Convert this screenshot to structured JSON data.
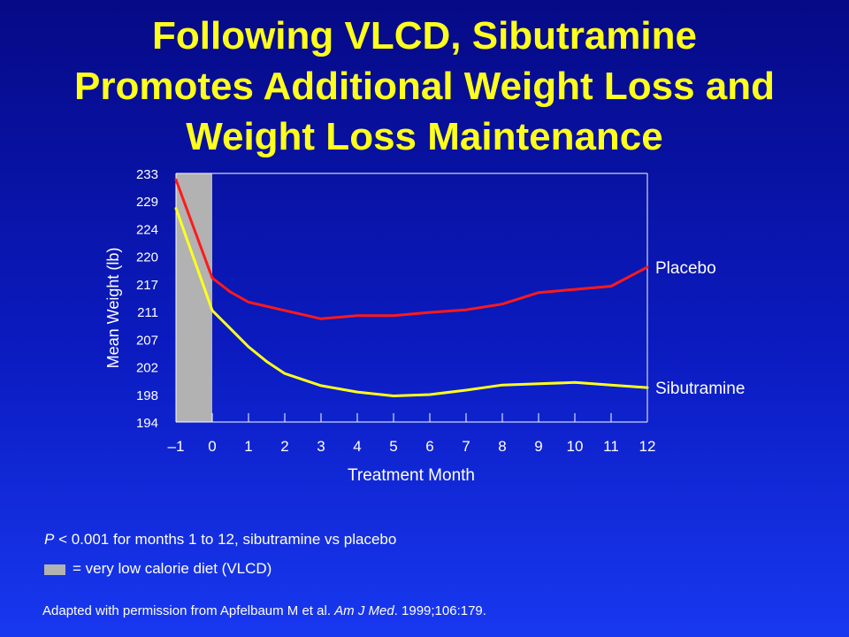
{
  "title_lines": [
    "Following VLCD, Sibutramine",
    "Promotes Additional Weight Loss and",
    "Weight Loss Maintenance"
  ],
  "chart_data": {
    "type": "line",
    "xlabel": "Treatment Month",
    "ylabel": "Mean Weight (lb)",
    "x_ticks": [
      "–1",
      "0",
      "1",
      "2",
      "3",
      "4",
      "5",
      "6",
      "7",
      "8",
      "9",
      "10",
      "11",
      "12"
    ],
    "y_ticks": [
      "194",
      "198",
      "202",
      "207",
      "211",
      "217",
      "220",
      "224",
      "229",
      "233"
    ],
    "xlim": [
      -1,
      12
    ],
    "ylim": [
      194,
      233
    ],
    "shaded_region": {
      "from": -1,
      "to": 0,
      "color": "#b2b2b2",
      "meaning": "VLCD"
    },
    "series": [
      {
        "name": "Placebo",
        "color": "#ff1a1a",
        "x": [
          -1,
          0,
          0.5,
          1,
          2,
          3,
          4,
          5,
          6,
          7,
          8,
          9,
          10,
          11,
          12
        ],
        "y": [
          232,
          216.6,
          214.4,
          212.8,
          211.5,
          210.2,
          210.7,
          210.7,
          211.2,
          211.6,
          212.5,
          214.3,
          214.8,
          215.3,
          218.3
        ]
      },
      {
        "name": "Sibutramine",
        "color": "#ffff1c",
        "x": [
          -1,
          0,
          1,
          1.5,
          2,
          3,
          4,
          5,
          6,
          7,
          8,
          9,
          10,
          11,
          12
        ],
        "y": [
          227.5,
          211.5,
          205.8,
          203.5,
          201.6,
          199.7,
          198.7,
          198.1,
          198.3,
          199,
          199.8,
          200,
          200.2,
          199.8,
          199.4
        ]
      }
    ]
  },
  "footnotes": {
    "p_italic": "P",
    "p_rest": " < 0.001 for months 1 to 12, sibutramine vs placebo",
    "vlcd_legend": "= very low calorie diet (VLCD)",
    "citation_pre": "Adapted with permission from Apfelbaum M et al. ",
    "citation_journal": "Am J Med",
    "citation_post": ". 1999;106:179."
  }
}
